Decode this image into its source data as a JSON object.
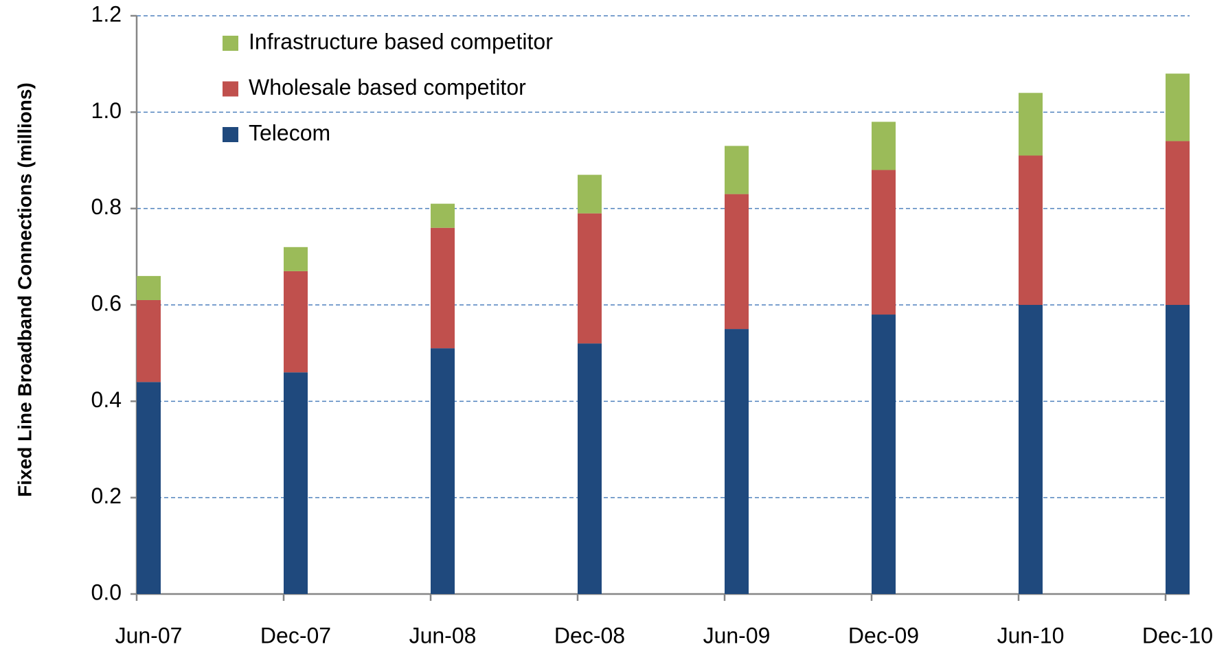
{
  "chart_data": {
    "type": "stacked_bar",
    "y_axis_label": "Fixed Line Broadband  Connections (millions)",
    "categories": [
      "Jun-07",
      "Dec-07",
      "Jun-08",
      "Dec-08",
      "Jun-09",
      "Dec-09",
      "Jun-10",
      "Dec-10"
    ],
    "series": [
      {
        "name": "Telecom",
        "color": "#1f497d",
        "values": [
          0.44,
          0.46,
          0.51,
          0.52,
          0.55,
          0.58,
          0.6,
          0.6
        ]
      },
      {
        "name": "Wholesale based competitor",
        "color": "#c0504d",
        "values": [
          0.17,
          0.21,
          0.25,
          0.27,
          0.28,
          0.3,
          0.31,
          0.34
        ]
      },
      {
        "name": "Infrastructure based competitor",
        "color": "#9bbb59",
        "values": [
          0.05,
          0.05,
          0.05,
          0.08,
          0.1,
          0.1,
          0.13,
          0.14
        ]
      }
    ],
    "ylim": [
      0,
      1.2
    ],
    "yticks": [
      {
        "value": 0,
        "label": "0.0"
      },
      0.2,
      0.4,
      0.6,
      0.8,
      {
        "value": 1,
        "label": "1.0"
      },
      1.2
    ],
    "grid": true,
    "legend": "top-left"
  }
}
